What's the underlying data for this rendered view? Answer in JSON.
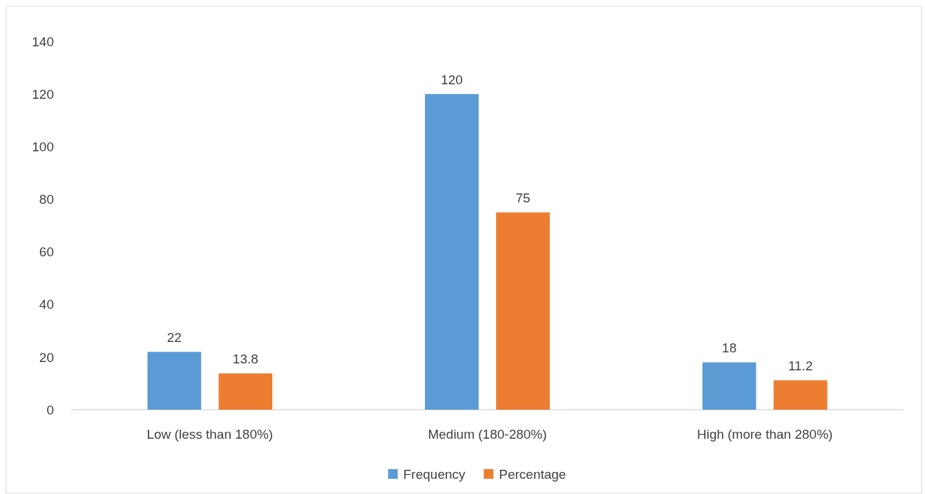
{
  "chart_data": {
    "type": "bar",
    "categories": [
      "Low (less than 180%)",
      "Medium (180-280%)",
      "High (more than 280%)"
    ],
    "series": [
      {
        "name": "Frequency",
        "color": "#5b9bd5",
        "values": [
          22,
          120,
          18
        ]
      },
      {
        "name": "Percentage",
        "color": "#ed7d31",
        "values": [
          13.8,
          75,
          11.2
        ]
      }
    ],
    "ylim": [
      0,
      140
    ],
    "yticks": [
      0,
      20,
      40,
      60,
      80,
      100,
      120,
      140
    ],
    "data_labels": true,
    "legend": "bottom"
  }
}
